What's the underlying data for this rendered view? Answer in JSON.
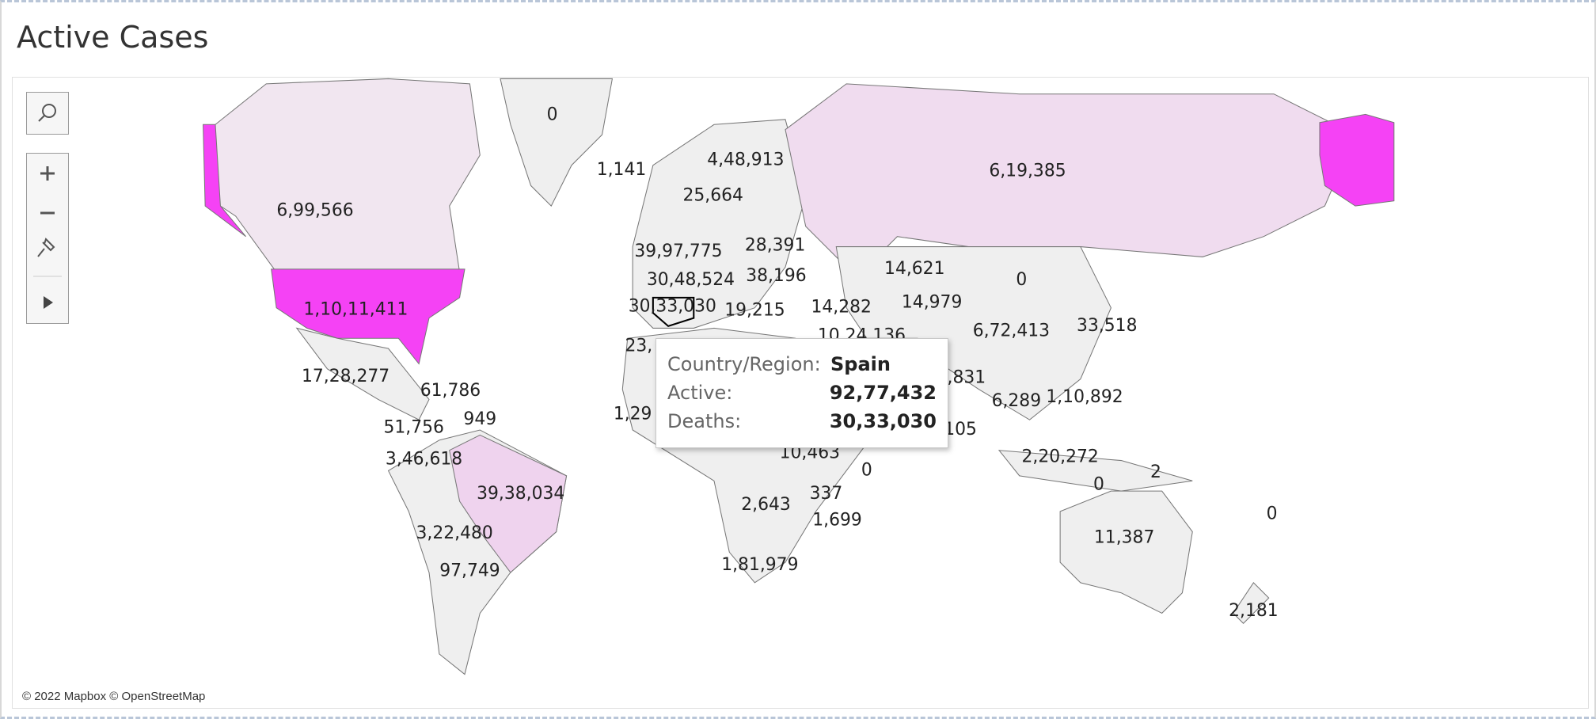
{
  "header": {
    "title": "Active Cases"
  },
  "map": {
    "labels": [
      "0",
      "1,141",
      "4,48,913",
      "25,664",
      "6,19,385",
      "6,99,566",
      "39,97,775",
      "28,391",
      "14,621",
      "0",
      "30,48,524",
      "38,196",
      "14,979",
      "30,33,030",
      "19,215",
      "14,282",
      "1,10,11,411",
      "6,72,413",
      "33,518",
      "10,24,136",
      "23,",
      "1,29",
      ",831",
      "105",
      "17,28,277",
      "61,786",
      "6,289",
      "1,10,892",
      "949",
      "51,756",
      "10,463",
      "3,46,618",
      "2,20,272",
      "0",
      "2",
      "0",
      "39,38,034",
      "337",
      "2,643",
      "1,699",
      "0",
      "3,22,480",
      "11,387",
      "97,749",
      "1,81,979",
      "2,181"
    ],
    "attribution": "© 2022 Mapbox © OpenStreetMap"
  },
  "tooltip": {
    "rows": [
      [
        "Country/Region:",
        "Spain"
      ],
      [
        "Active:",
        "92,77,432"
      ],
      [
        "Deaths:",
        "30,33,030"
      ]
    ]
  }
}
